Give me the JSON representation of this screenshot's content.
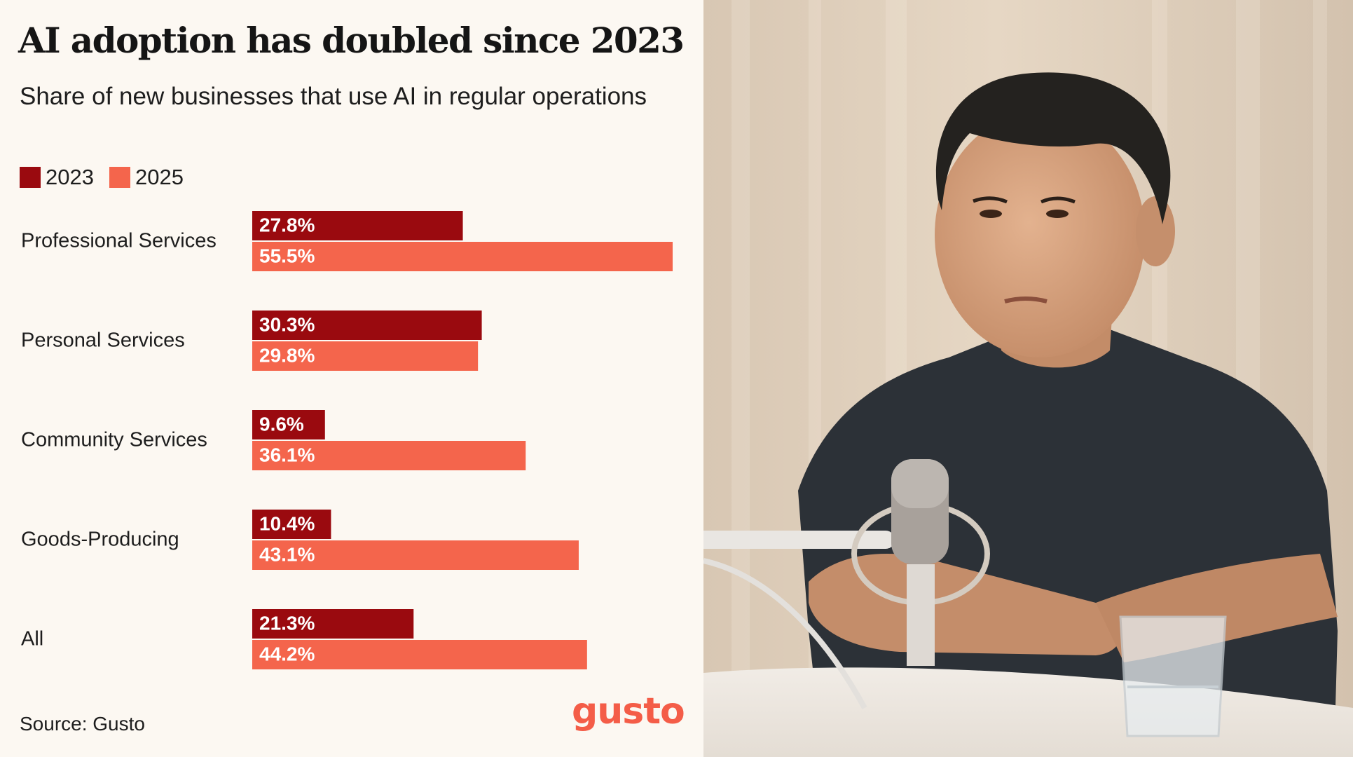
{
  "header": {
    "title": "AI adoption has doubled since 2023",
    "subtitle": "Share of new businesses that use AI in regular operations"
  },
  "legend": [
    {
      "label": "2023",
      "color": "#9a0a0f"
    },
    {
      "label": "2025",
      "color": "#f4654c"
    }
  ],
  "chart_data": {
    "type": "bar",
    "orientation": "horizontal",
    "title": "AI adoption has doubled since 2023",
    "subtitle": "Share of new businesses that use AI in regular operations",
    "categories": [
      "Professional Services",
      "Personal Services",
      "Community Services",
      "Goods-Producing",
      "All"
    ],
    "series": [
      {
        "name": "2023",
        "color": "#9a0a0f",
        "values": [
          27.8,
          30.3,
          9.6,
          10.4,
          21.3
        ],
        "labels": [
          "27.8%",
          "30.3%",
          "9.6%",
          "10.4%",
          "21.3%"
        ]
      },
      {
        "name": "2025",
        "color": "#f4654c",
        "values": [
          55.5,
          29.8,
          36.1,
          43.1,
          44.2
        ],
        "labels": [
          "55.5%",
          "29.8%",
          "36.1%",
          "43.1%",
          "44.2%"
        ]
      }
    ],
    "xlim": [
      0,
      55.5
    ],
    "grid": false,
    "legend_position": "top-left",
    "source": "Source: Gusto"
  },
  "footer": {
    "source": "Source: Gusto",
    "logo": "gusto"
  },
  "colors": {
    "background": "#fcf8f2",
    "dark_bar": "#9a0a0f",
    "light_bar": "#f4654c",
    "brand": "#f45d48"
  }
}
